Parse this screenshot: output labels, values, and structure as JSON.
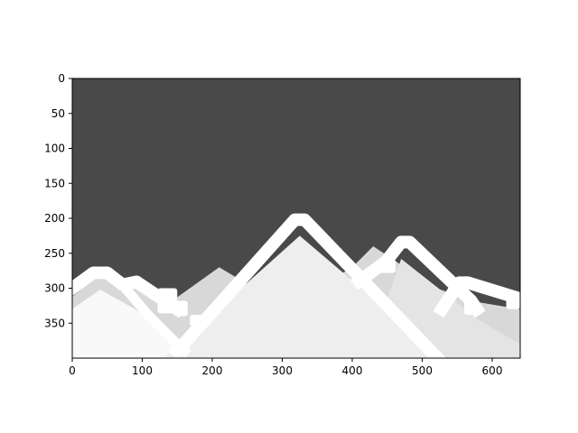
{
  "chart_data": {
    "type": "heatmap",
    "title": "",
    "xlabel": "",
    "ylabel": "",
    "xlim": [
      0,
      640
    ],
    "ylim": [
      400,
      0
    ],
    "image_size": [
      640,
      400
    ],
    "x_ticks": [
      0,
      100,
      200,
      300,
      400,
      500,
      600
    ],
    "y_ticks": [
      0,
      50,
      100,
      150,
      200,
      250,
      300,
      350
    ],
    "grid": false,
    "colors": {
      "background": "#494949",
      "back_mountain": "#d8d8d8",
      "mid_mountain": "#e4e4e4",
      "front_mountain": "#f9f9f9",
      "center_mountain": "#eeeeee",
      "snow_outline": "#ffffff"
    },
    "layers": [
      {
        "name": "back-range",
        "fill": "#d8d8d8",
        "points": [
          [
            0,
            400
          ],
          [
            0,
            312
          ],
          [
            40,
            280
          ],
          [
            95,
            300
          ],
          [
            140,
            320
          ],
          [
            210,
            270
          ],
          [
            260,
            300
          ],
          [
            300,
            310
          ],
          [
            350,
            300
          ],
          [
            400,
            270
          ],
          [
            430,
            240
          ],
          [
            460,
            260
          ],
          [
            520,
            300
          ],
          [
            580,
            320
          ],
          [
            640,
            330
          ],
          [
            640,
            400
          ]
        ]
      },
      {
        "name": "mid-range",
        "fill": "#e4e4e4",
        "points": [
          [
            420,
            400
          ],
          [
            470,
            258
          ],
          [
            580,
            345
          ],
          [
            640,
            380
          ],
          [
            640,
            400
          ]
        ]
      },
      {
        "name": "left-front-range",
        "fill": "#f9f9f9",
        "points": [
          [
            0,
            400
          ],
          [
            0,
            330
          ],
          [
            40,
            302
          ],
          [
            90,
            330
          ],
          [
            160,
            382
          ],
          [
            200,
            400
          ]
        ]
      },
      {
        "name": "center-peak",
        "fill": "#eeeeee",
        "points": [
          [
            130,
            400
          ],
          [
            325,
            225
          ],
          [
            530,
            400
          ]
        ]
      }
    ],
    "ridges": [
      {
        "name": "left-ridge",
        "stroke": "#ffffff",
        "width": 18,
        "points": [
          [
            0,
            300
          ],
          [
            30,
            278
          ],
          [
            50,
            278
          ],
          [
            72,
            295
          ],
          [
            92,
            291
          ],
          [
            150,
            330
          ]
        ]
      },
      {
        "name": "left-inner-ridge",
        "stroke": "#ffffff",
        "width": 14,
        "points": [
          [
            80,
            305
          ],
          [
            110,
            340
          ],
          [
            160,
            390
          ]
        ]
      },
      {
        "name": "center-ridge",
        "stroke": "#ffffff",
        "width": 18,
        "points": [
          [
            150,
            390
          ],
          [
            318,
            202
          ],
          [
            332,
            202
          ],
          [
            520,
            398
          ]
        ]
      },
      {
        "name": "right-ridge",
        "stroke": "#ffffff",
        "width": 18,
        "points": [
          [
            410,
            290
          ],
          [
            448,
            262
          ],
          [
            470,
            234
          ],
          [
            482,
            234
          ],
          [
            570,
            318
          ],
          [
            578,
            330
          ]
        ]
      },
      {
        "name": "far-right-ridge",
        "stroke": "#ffffff",
        "width": 18,
        "points": [
          [
            528,
            330
          ],
          [
            553,
            292
          ],
          [
            565,
            292
          ],
          [
            640,
            315
          ]
        ]
      }
    ],
    "blocks": [
      {
        "name": "snow-block-1",
        "fill": "#ffffff",
        "x": 122,
        "y": 300,
        "w": 28,
        "h": 36
      },
      {
        "name": "snow-block-2",
        "fill": "#ffffff",
        "x": 145,
        "y": 318,
        "w": 20,
        "h": 22
      },
      {
        "name": "snow-block-3",
        "fill": "#ffffff",
        "x": 168,
        "y": 338,
        "w": 20,
        "h": 16
      },
      {
        "name": "snow-block-4",
        "fill": "#ffffff",
        "x": 438,
        "y": 258,
        "w": 24,
        "h": 20
      },
      {
        "name": "snow-block-5",
        "fill": "#ffffff",
        "x": 560,
        "y": 318,
        "w": 16,
        "h": 20
      },
      {
        "name": "snow-block-6",
        "fill": "#ffffff",
        "x": 620,
        "y": 308,
        "w": 20,
        "h": 22
      }
    ]
  }
}
